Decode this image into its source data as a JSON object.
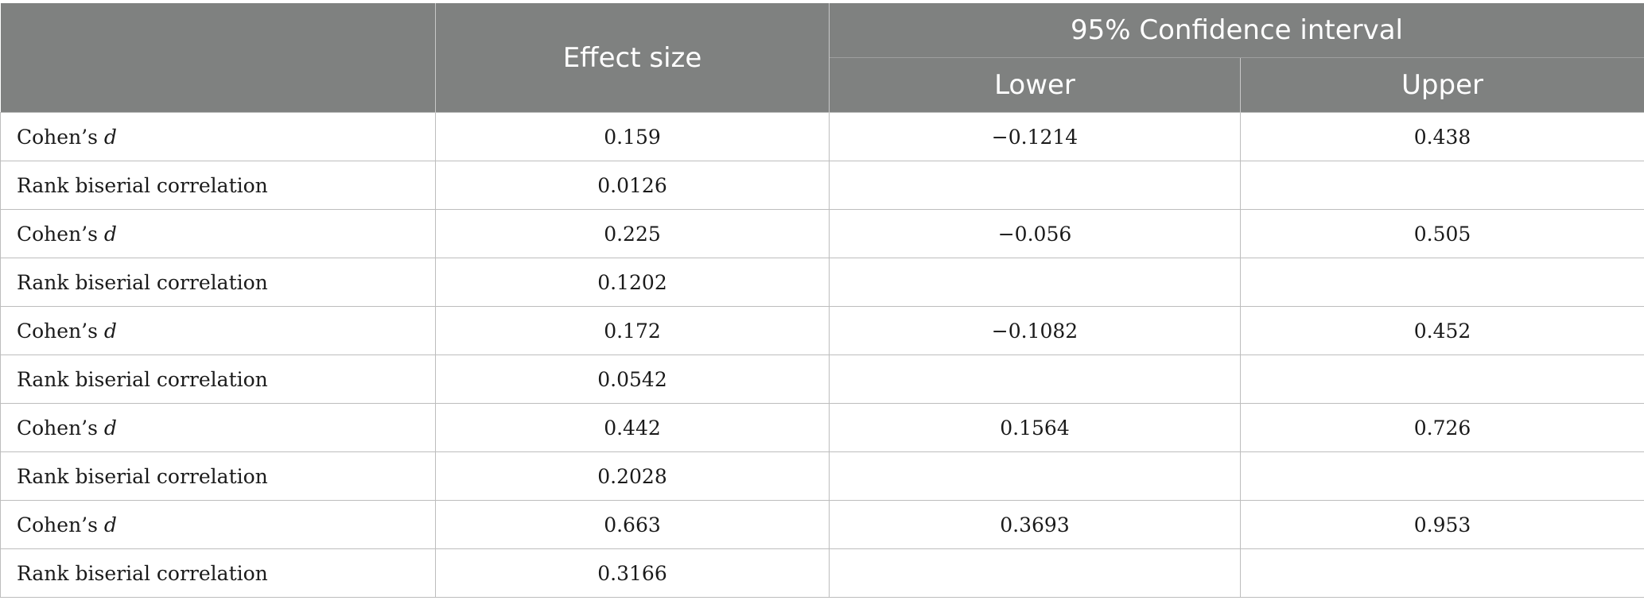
{
  "header": {
    "col1": "",
    "effect_size": "Effect size",
    "ci": "95% Confidence interval",
    "lower": "Lower",
    "upper": "Upper"
  },
  "rows": [
    {
      "label": "Cohen’s ",
      "label_var": "d",
      "effect": "0.159",
      "lower": "−0.1214",
      "upper": "0.438"
    },
    {
      "label": "Rank biserial correlation",
      "label_var": "",
      "effect": "0.0126",
      "lower": "",
      "upper": ""
    },
    {
      "label": "Cohen’s ",
      "label_var": "d",
      "effect": "0.225",
      "lower": "−0.056",
      "upper": "0.505"
    },
    {
      "label": "Rank biserial correlation",
      "label_var": "",
      "effect": "0.1202",
      "lower": "",
      "upper": ""
    },
    {
      "label": "Cohen’s ",
      "label_var": "d",
      "effect": "0.172",
      "lower": "−0.1082",
      "upper": "0.452"
    },
    {
      "label": "Rank biserial correlation",
      "label_var": "",
      "effect": "0.0542",
      "lower": "",
      "upper": ""
    },
    {
      "label": "Cohen’s ",
      "label_var": "d",
      "effect": "0.442",
      "lower": "0.1564",
      "upper": "0.726"
    },
    {
      "label": "Rank biserial correlation",
      "label_var": "",
      "effect": "0.2028",
      "lower": "",
      "upper": ""
    },
    {
      "label": "Cohen’s ",
      "label_var": "d",
      "effect": "0.663",
      "lower": "0.3693",
      "upper": "0.953"
    },
    {
      "label": "Rank biserial correlation",
      "label_var": "",
      "effect": "0.3166",
      "lower": "",
      "upper": ""
    }
  ]
}
